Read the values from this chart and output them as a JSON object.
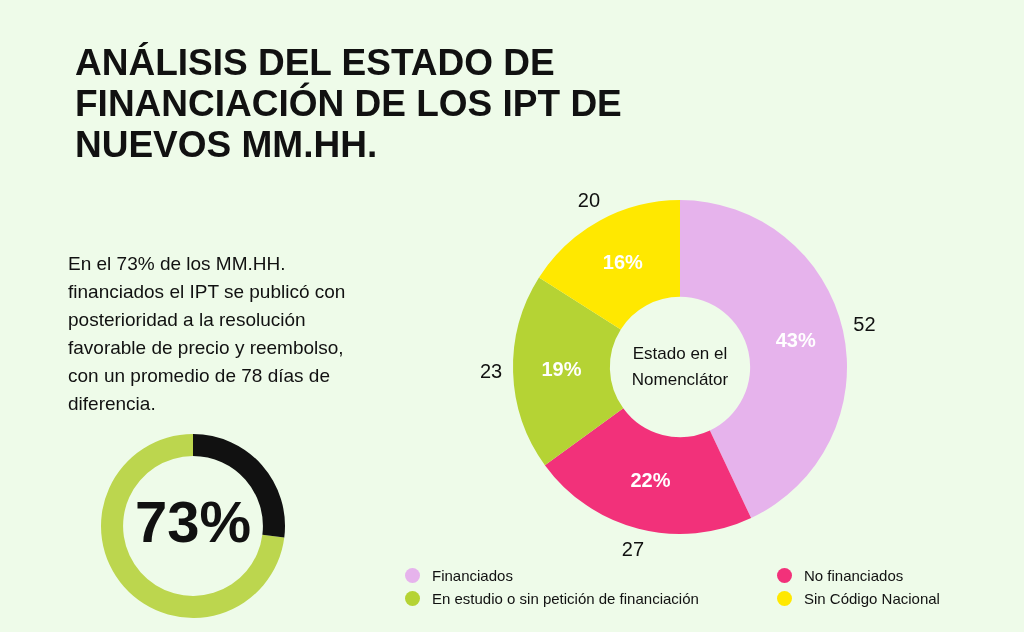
{
  "chart_data": [
    {
      "type": "donut",
      "title": "ANÁLISIS DEL ESTADO DE FINANCIACIÓN DE LOS IPT DE NUEVOS MM.HH.",
      "categories": [
        "Financiados",
        "No financiados",
        "En estudio o sin petición de financiación",
        "Sin Código Nacional"
      ],
      "values": [
        43,
        22,
        19,
        16
      ],
      "colors": [
        "#e6b3ec",
        "#f2317a",
        "#b5d334",
        "#ffe800"
      ],
      "value_labels": [
        "43%",
        "22%",
        "19%",
        "16%"
      ],
      "legend": "bottom",
      "annotations": [
        "Estado en el Nomenclátor",
        {
          "text": "52",
          "x": "Financiados"
        },
        {
          "text": "27",
          "x": "No financiados"
        },
        {
          "text": "23",
          "x": "En estudio o sin petición de financiación"
        },
        {
          "text": "20",
          "x": "Sin Código Nacional"
        }
      ]
    },
    {
      "type": "donut",
      "categories": [
        null,
        null
      ],
      "values": [
        73,
        27
      ],
      "colors": [
        "#bcd64e",
        "#111111"
      ],
      "value_labels": [
        "73%",
        null
      ],
      "annotations": [
        "En el 73% de los MM.HH. financiados el IPT se publicó con posterioridad a la resolución favorable de precio y reembolso, con un promedio de 78 días de diferencia."
      ]
    }
  ]
}
